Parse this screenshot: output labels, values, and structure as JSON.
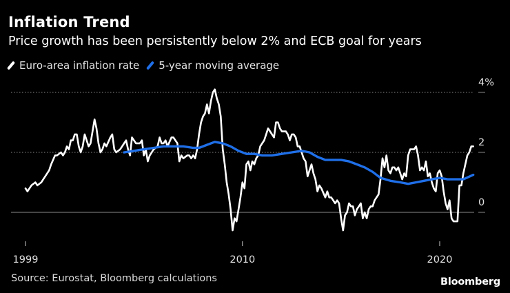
{
  "chart_data": {
    "type": "line",
    "title": "Inflation Trend",
    "subtitle": "Price growth has been persistently below 2% and ECB goal for years",
    "xlabel": "",
    "ylabel": "",
    "xlim": [
      1999.0,
      2022.2
    ],
    "ylim": [
      -1.0,
      4.3
    ],
    "x_ticks": [
      1999,
      2010,
      2020
    ],
    "x_tick_labels": [
      "1999",
      "2010",
      "2020"
    ],
    "y_ticks": [
      4,
      2,
      0
    ],
    "y_tick_labels": [
      "4%",
      "2",
      "0"
    ],
    "legend_position": "top-left",
    "series": [
      {
        "name": "Euro-area inflation rate",
        "color": "#ffffff",
        "points": [
          [
            1999.0,
            0.8
          ],
          [
            1999.1,
            0.7
          ],
          [
            1999.3,
            0.9
          ],
          [
            1999.5,
            1.0
          ],
          [
            1999.6,
            0.9
          ],
          [
            1999.8,
            1.0
          ],
          [
            2000.0,
            1.2
          ],
          [
            2000.2,
            1.4
          ],
          [
            2000.3,
            1.6
          ],
          [
            2000.5,
            1.9
          ],
          [
            2000.6,
            1.9
          ],
          [
            2000.8,
            2.0
          ],
          [
            2000.9,
            1.9
          ],
          [
            2001.0,
            2.0
          ],
          [
            2001.1,
            2.2
          ],
          [
            2001.2,
            2.1
          ],
          [
            2001.3,
            2.4
          ],
          [
            2001.4,
            2.4
          ],
          [
            2001.5,
            2.6
          ],
          [
            2001.6,
            2.6
          ],
          [
            2001.7,
            2.2
          ],
          [
            2001.8,
            2.0
          ],
          [
            2001.9,
            2.2
          ],
          [
            2002.0,
            2.6
          ],
          [
            2002.2,
            2.2
          ],
          [
            2002.3,
            2.3
          ],
          [
            2002.5,
            3.1
          ],
          [
            2002.6,
            2.8
          ],
          [
            2002.7,
            2.3
          ],
          [
            2002.8,
            2.0
          ],
          [
            2002.9,
            2.1
          ],
          [
            2003.0,
            2.3
          ],
          [
            2003.1,
            2.2
          ],
          [
            2003.3,
            2.5
          ],
          [
            2003.4,
            2.6
          ],
          [
            2003.5,
            2.1
          ],
          [
            2003.6,
            2.0
          ],
          [
            2003.8,
            2.1
          ],
          [
            2003.9,
            2.2
          ],
          [
            2004.0,
            2.3
          ],
          [
            2004.1,
            2.4
          ],
          [
            2004.2,
            2.1
          ],
          [
            2004.3,
            1.9
          ],
          [
            2004.4,
            2.5
          ],
          [
            2004.5,
            2.4
          ],
          [
            2004.6,
            2.3
          ],
          [
            2004.7,
            2.3
          ],
          [
            2004.8,
            2.3
          ],
          [
            2004.9,
            2.4
          ],
          [
            2005.0,
            1.9
          ],
          [
            2005.1,
            2.1
          ],
          [
            2005.2,
            1.7
          ],
          [
            2005.3,
            1.9
          ],
          [
            2005.5,
            2.1
          ],
          [
            2005.7,
            2.2
          ],
          [
            2005.8,
            2.5
          ],
          [
            2005.9,
            2.3
          ],
          [
            2006.0,
            2.3
          ],
          [
            2006.1,
            2.4
          ],
          [
            2006.2,
            2.2
          ],
          [
            2006.4,
            2.5
          ],
          [
            2006.5,
            2.5
          ],
          [
            2006.6,
            2.4
          ],
          [
            2006.7,
            2.3
          ],
          [
            2006.8,
            1.7
          ],
          [
            2006.9,
            1.9
          ],
          [
            2007.0,
            1.8
          ],
          [
            2007.2,
            1.9
          ],
          [
            2007.3,
            1.9
          ],
          [
            2007.4,
            1.8
          ],
          [
            2007.5,
            1.9
          ],
          [
            2007.6,
            1.8
          ],
          [
            2007.7,
            2.1
          ],
          [
            2007.8,
            2.6
          ],
          [
            2007.9,
            3.0
          ],
          [
            2008.0,
            3.2
          ],
          [
            2008.1,
            3.3
          ],
          [
            2008.2,
            3.6
          ],
          [
            2008.3,
            3.3
          ],
          [
            2008.4,
            3.7
          ],
          [
            2008.5,
            4.0
          ],
          [
            2008.6,
            4.1
          ],
          [
            2008.7,
            3.8
          ],
          [
            2008.8,
            3.6
          ],
          [
            2008.9,
            3.2
          ],
          [
            2009.0,
            2.1
          ],
          [
            2009.1,
            1.6
          ],
          [
            2009.2,
            1.0
          ],
          [
            2009.3,
            0.6
          ],
          [
            2009.4,
            0.1
          ],
          [
            2009.5,
            -0.6
          ],
          [
            2009.6,
            -0.2
          ],
          [
            2009.7,
            -0.3
          ],
          [
            2009.8,
            0.1
          ],
          [
            2009.9,
            0.5
          ],
          [
            2010.0,
            1.0
          ],
          [
            2010.1,
            0.8
          ],
          [
            2010.2,
            1.6
          ],
          [
            2010.3,
            1.7
          ],
          [
            2010.4,
            1.4
          ],
          [
            2010.5,
            1.7
          ],
          [
            2010.6,
            1.6
          ],
          [
            2010.7,
            1.8
          ],
          [
            2010.8,
            1.9
          ],
          [
            2010.9,
            2.2
          ],
          [
            2011.0,
            2.3
          ],
          [
            2011.1,
            2.4
          ],
          [
            2011.2,
            2.6
          ],
          [
            2011.3,
            2.8
          ],
          [
            2011.4,
            2.7
          ],
          [
            2011.5,
            2.6
          ],
          [
            2011.6,
            2.5
          ],
          [
            2011.7,
            3.0
          ],
          [
            2011.8,
            3.0
          ],
          [
            2011.9,
            2.8
          ],
          [
            2012.0,
            2.7
          ],
          [
            2012.2,
            2.7
          ],
          [
            2012.3,
            2.6
          ],
          [
            2012.4,
            2.4
          ],
          [
            2012.5,
            2.6
          ],
          [
            2012.6,
            2.6
          ],
          [
            2012.7,
            2.5
          ],
          [
            2012.8,
            2.2
          ],
          [
            2012.9,
            2.2
          ],
          [
            2013.0,
            2.0
          ],
          [
            2013.1,
            1.8
          ],
          [
            2013.2,
            1.7
          ],
          [
            2013.3,
            1.2
          ],
          [
            2013.4,
            1.4
          ],
          [
            2013.5,
            1.6
          ],
          [
            2013.6,
            1.3
          ],
          [
            2013.7,
            1.1
          ],
          [
            2013.8,
            0.7
          ],
          [
            2013.9,
            0.9
          ],
          [
            2014.0,
            0.8
          ],
          [
            2014.2,
            0.5
          ],
          [
            2014.3,
            0.7
          ],
          [
            2014.4,
            0.5
          ],
          [
            2014.5,
            0.5
          ],
          [
            2014.6,
            0.4
          ],
          [
            2014.7,
            0.3
          ],
          [
            2014.8,
            0.4
          ],
          [
            2014.9,
            0.3
          ],
          [
            2015.0,
            -0.2
          ],
          [
            2015.1,
            -0.6
          ],
          [
            2015.2,
            -0.1
          ],
          [
            2015.3,
            0.0
          ],
          [
            2015.4,
            0.3
          ],
          [
            2015.5,
            0.2
          ],
          [
            2015.6,
            0.2
          ],
          [
            2015.7,
            -0.1
          ],
          [
            2015.8,
            0.1
          ],
          [
            2015.9,
            0.2
          ],
          [
            2016.0,
            0.3
          ],
          [
            2016.1,
            -0.2
          ],
          [
            2016.2,
            0.0
          ],
          [
            2016.3,
            -0.2
          ],
          [
            2016.4,
            0.1
          ],
          [
            2016.5,
            0.2
          ],
          [
            2016.6,
            0.2
          ],
          [
            2016.7,
            0.4
          ],
          [
            2016.8,
            0.5
          ],
          [
            2016.9,
            0.6
          ],
          [
            2017.0,
            1.1
          ],
          [
            2017.1,
            1.8
          ],
          [
            2017.2,
            1.5
          ],
          [
            2017.3,
            1.9
          ],
          [
            2017.4,
            1.4
          ],
          [
            2017.5,
            1.3
          ],
          [
            2017.6,
            1.5
          ],
          [
            2017.7,
            1.5
          ],
          [
            2017.8,
            1.4
          ],
          [
            2017.9,
            1.5
          ],
          [
            2018.0,
            1.3
          ],
          [
            2018.1,
            1.1
          ],
          [
            2018.2,
            1.3
          ],
          [
            2018.3,
            1.2
          ],
          [
            2018.4,
            1.9
          ],
          [
            2018.5,
            2.1
          ],
          [
            2018.6,
            2.1
          ],
          [
            2018.7,
            2.1
          ],
          [
            2018.8,
            2.2
          ],
          [
            2018.9,
            1.9
          ],
          [
            2019.0,
            1.4
          ],
          [
            2019.1,
            1.5
          ],
          [
            2019.2,
            1.4
          ],
          [
            2019.3,
            1.7
          ],
          [
            2019.4,
            1.2
          ],
          [
            2019.5,
            1.3
          ],
          [
            2019.6,
            1.0
          ],
          [
            2019.7,
            0.8
          ],
          [
            2019.8,
            0.7
          ],
          [
            2019.9,
            1.3
          ],
          [
            2020.0,
            1.4
          ],
          [
            2020.1,
            1.2
          ],
          [
            2020.2,
            0.7
          ],
          [
            2020.3,
            0.3
          ],
          [
            2020.4,
            0.1
          ],
          [
            2020.5,
            0.4
          ],
          [
            2020.6,
            -0.2
          ],
          [
            2020.7,
            -0.3
          ],
          [
            2020.8,
            -0.3
          ],
          [
            2020.9,
            -0.3
          ],
          [
            2021.0,
            0.9
          ],
          [
            2021.1,
            0.9
          ],
          [
            2021.2,
            1.3
          ],
          [
            2021.3,
            1.6
          ],
          [
            2021.4,
            1.9
          ],
          [
            2021.5,
            2.0
          ],
          [
            2021.6,
            2.2
          ],
          [
            2021.7,
            2.2
          ]
        ]
      },
      {
        "name": "5-year moving average",
        "color": "#1f6fe8",
        "points": [
          [
            2004.0,
            2.0
          ],
          [
            2004.5,
            2.05
          ],
          [
            2005.0,
            2.1
          ],
          [
            2005.5,
            2.15
          ],
          [
            2006.0,
            2.2
          ],
          [
            2006.5,
            2.2
          ],
          [
            2007.0,
            2.2
          ],
          [
            2007.5,
            2.15
          ],
          [
            2007.8,
            2.15
          ],
          [
            2008.2,
            2.25
          ],
          [
            2008.6,
            2.35
          ],
          [
            2009.0,
            2.3
          ],
          [
            2009.4,
            2.2
          ],
          [
            2009.8,
            2.05
          ],
          [
            2010.2,
            1.95
          ],
          [
            2010.6,
            1.95
          ],
          [
            2011.0,
            1.9
          ],
          [
            2011.5,
            1.9
          ],
          [
            2012.0,
            1.95
          ],
          [
            2012.5,
            2.0
          ],
          [
            2013.0,
            2.05
          ],
          [
            2013.4,
            2.0
          ],
          [
            2013.8,
            1.85
          ],
          [
            2014.2,
            1.75
          ],
          [
            2014.6,
            1.75
          ],
          [
            2015.0,
            1.75
          ],
          [
            2015.4,
            1.7
          ],
          [
            2015.8,
            1.6
          ],
          [
            2016.2,
            1.5
          ],
          [
            2016.6,
            1.35
          ],
          [
            2017.0,
            1.15
          ],
          [
            2017.5,
            1.05
          ],
          [
            2018.0,
            1.0
          ],
          [
            2018.4,
            0.95
          ],
          [
            2018.8,
            1.0
          ],
          [
            2019.2,
            1.05
          ],
          [
            2019.6,
            1.1
          ],
          [
            2020.0,
            1.15
          ],
          [
            2020.4,
            1.1
          ],
          [
            2020.8,
            1.1
          ],
          [
            2021.2,
            1.1
          ],
          [
            2021.7,
            1.25
          ]
        ]
      }
    ]
  },
  "source": "Source: Eurostat, Bloomberg calculations",
  "brand": "Bloomberg",
  "colors": {
    "background": "#000000",
    "gridline": "#8a8a8a",
    "axis": "#cccccc"
  }
}
